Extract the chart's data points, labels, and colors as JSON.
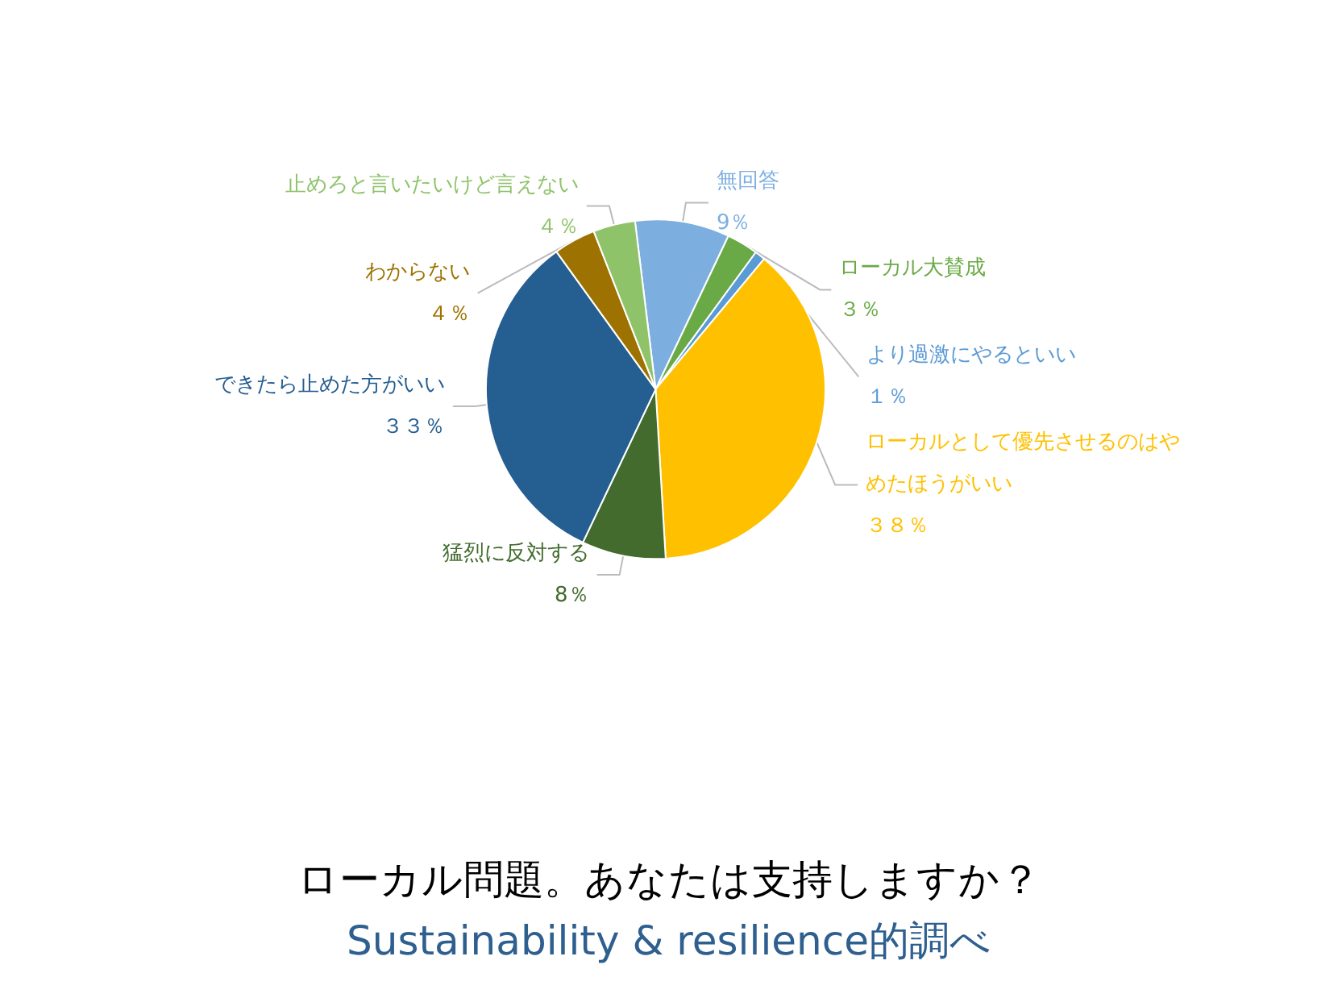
{
  "chart_data": {
    "type": "pie",
    "title": "ローカル問題。あなたは支持しますか？",
    "subtitle": "Sustainability & resilience的調べ",
    "categories": [
      "無回答",
      "ローカル大賛成",
      "より過激にやるといい",
      "ローカルとして優先させるのはやめたほうがいい",
      "猛烈に反対する",
      "できたら止めた方がいい",
      "わからない",
      "止めろと言いたいけど言えない"
    ],
    "values": [
      9,
      3,
      1,
      38,
      8,
      33,
      4,
      4
    ],
    "value_labels": [
      "9％",
      "３％",
      "１％",
      "３８％",
      "8％",
      "３３％",
      "４％",
      "４％"
    ],
    "colors": [
      "#7cafe0",
      "#6aaa46",
      "#5b9bd5",
      "#ffc000",
      "#426b2d",
      "#255e91",
      "#9e7200",
      "#8fc36a"
    ],
    "legend": false
  }
}
